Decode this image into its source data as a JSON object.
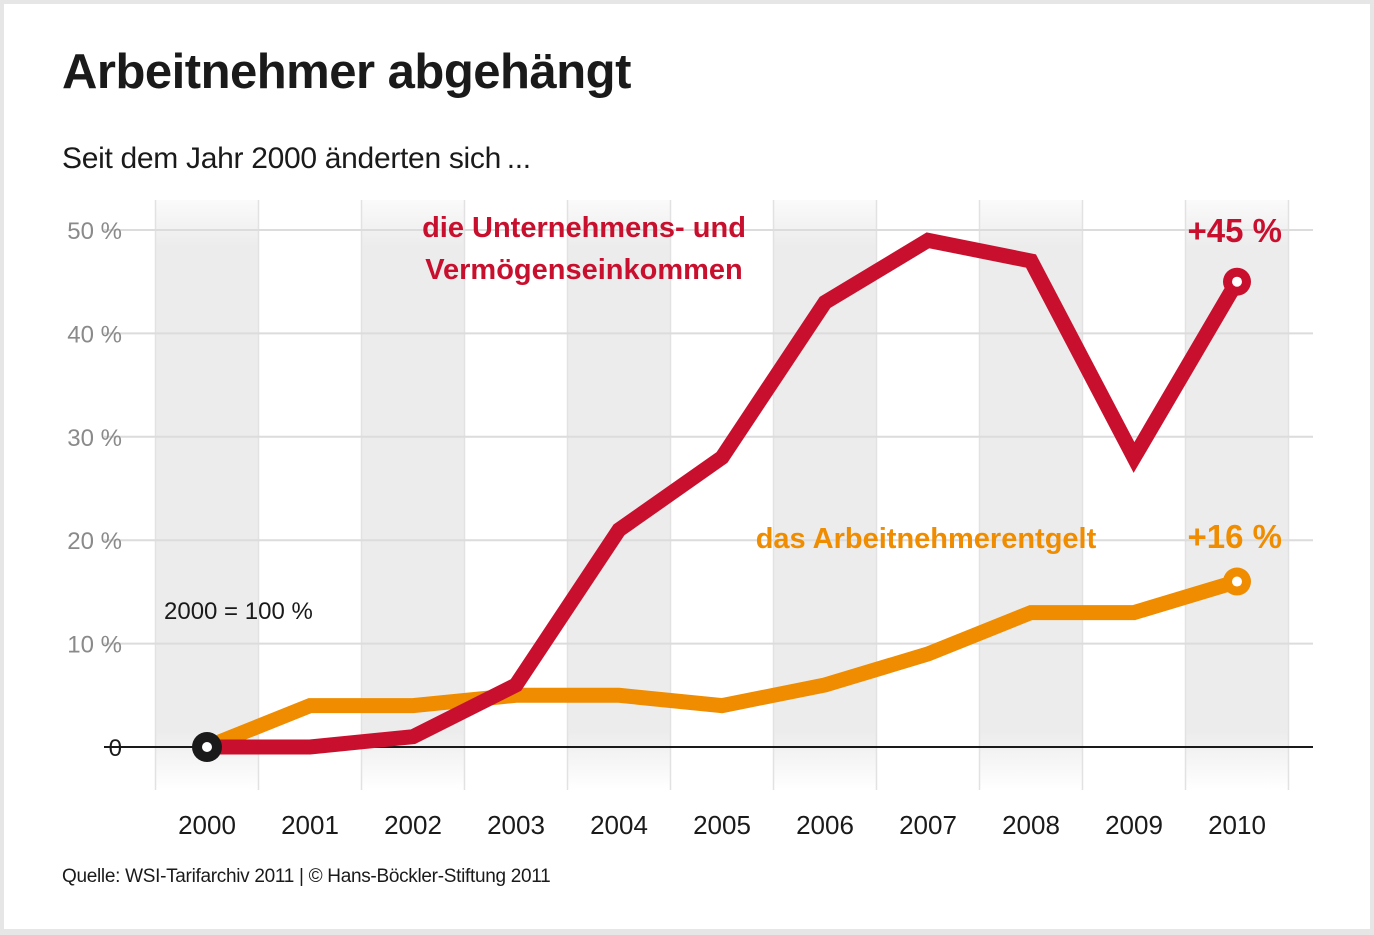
{
  "header": {
    "title": "Arbeitnehmer abgehängt",
    "subtitle": "Seit dem Jahr 2000 änderten sich ..."
  },
  "footer": {
    "source": "Quelle: WSI-Tarifarchiv 2011 | © Hans-Böckler-Stiftung 2011"
  },
  "chart_data": {
    "type": "line",
    "title": "Arbeitnehmer abgehängt",
    "subtitle": "Seit dem Jahr 2000 änderten sich ...",
    "xlabel": "",
    "ylabel": "",
    "x": [
      "2000",
      "2001",
      "2002",
      "2003",
      "2004",
      "2005",
      "2006",
      "2007",
      "2008",
      "2009",
      "2010"
    ],
    "ylim": [
      0,
      50
    ],
    "yticks": [
      {
        "value": 0,
        "label": "0"
      },
      {
        "value": 10,
        "label": "10 %"
      },
      {
        "value": 20,
        "label": "20 %"
      },
      {
        "value": 30,
        "label": "30 %"
      },
      {
        "value": 40,
        "label": "40 %"
      },
      {
        "value": 50,
        "label": "50 %"
      }
    ],
    "grid": true,
    "alternating_column_shading": true,
    "annotation_base": "2000 = 100 %",
    "series": [
      {
        "name": "die Unternehmens- und Vermögenseinkommen",
        "label_lines": [
          "die Unternehmens- und",
          "Vermögenseinkommen"
        ],
        "color": "#c8102e",
        "values": [
          0,
          0,
          1,
          6,
          21,
          28,
          43,
          49,
          47,
          28,
          45
        ],
        "end_label": "+45 %"
      },
      {
        "name": "das Arbeitnehmerentgelt",
        "label_lines": [
          "das Arbeitnehmerentgelt"
        ],
        "color": "#ef8c00",
        "values": [
          0,
          4,
          4,
          5,
          5,
          4,
          6,
          9,
          13,
          13,
          16
        ],
        "end_label": "+16 %"
      }
    ],
    "start_marker_color": "#1a1a1a"
  }
}
